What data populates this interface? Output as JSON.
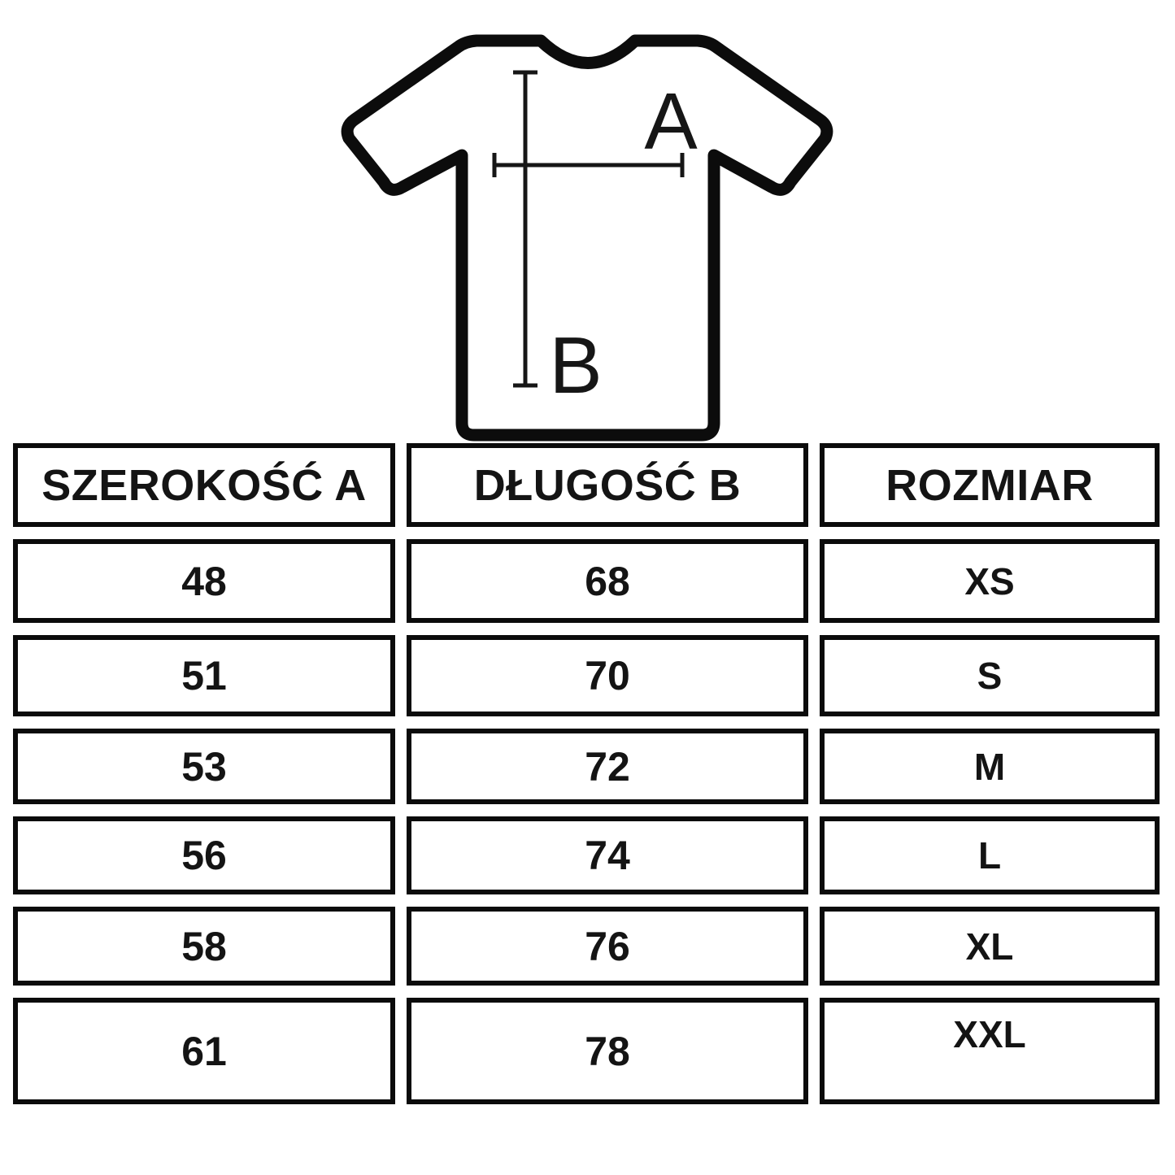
{
  "colors": {
    "border": "#0b0b0b",
    "text": "#141414",
    "outline": "#0c0c0c"
  },
  "diagram": {
    "width_label": "A",
    "length_label": "B"
  },
  "table": {
    "headers": [
      "SZEROKOŚĆ A",
      "DŁUGOŚĆ B",
      "ROZMIAR"
    ],
    "rows": [
      [
        "48",
        "68",
        "XS"
      ],
      [
        "51",
        "70",
        "S"
      ],
      [
        "53",
        "72",
        "M"
      ],
      [
        "56",
        "74",
        "L"
      ],
      [
        "58",
        "76",
        "XL"
      ],
      [
        "61",
        "78",
        "XXL"
      ]
    ]
  },
  "chart_data": {
    "type": "table",
    "columns": [
      "SZEROKOŚĆ A",
      "DŁUGOŚĆ B",
      "ROZMIAR"
    ],
    "rows": [
      [
        48,
        68,
        "XS"
      ],
      [
        51,
        70,
        "S"
      ],
      [
        53,
        72,
        "M"
      ],
      [
        56,
        74,
        "L"
      ],
      [
        58,
        76,
        "XL"
      ],
      [
        61,
        78,
        "XXL"
      ]
    ]
  }
}
